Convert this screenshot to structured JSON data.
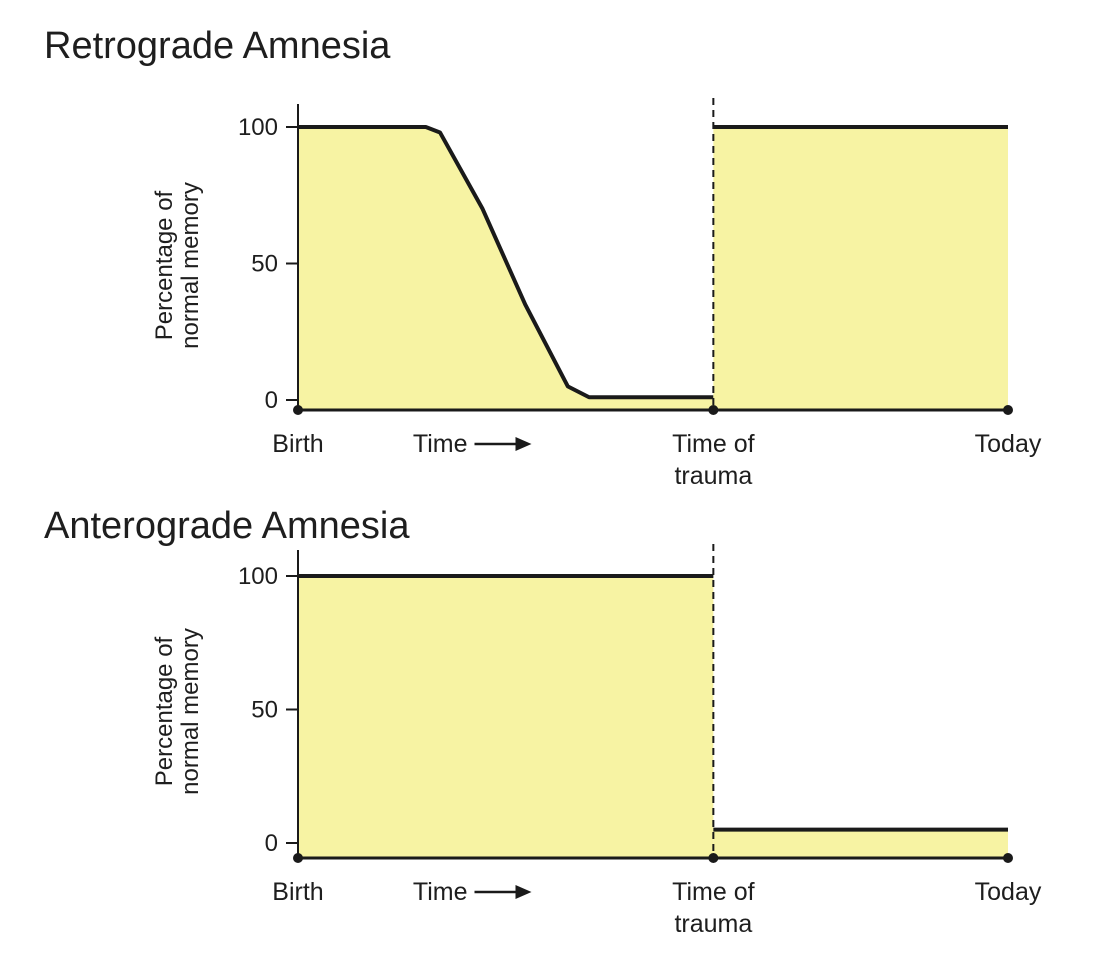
{
  "chart_data": [
    {
      "type": "area",
      "title": "Retrograde Amnesia",
      "ylabel_lines": [
        "Percentage of",
        "normal memory"
      ],
      "ylim": [
        0,
        100
      ],
      "yticks": [
        "0",
        "50",
        "100"
      ],
      "x_ticks": [
        {
          "label_lines": [
            "Birth"
          ],
          "pos": 0
        },
        {
          "label_lines": [
            "Time"
          ],
          "pos": 0.25,
          "arrow": true
        },
        {
          "label_lines": [
            "Time of",
            "trauma"
          ],
          "pos": 0.585
        },
        {
          "label_lines": [
            "Today"
          ],
          "pos": 1
        }
      ],
      "series": [
        {
          "x": [
            0,
            0.18,
            0.2,
            0.26,
            0.32,
            0.38,
            0.41,
            0.585
          ],
          "y": [
            100,
            100,
            98,
            70,
            35,
            5,
            1,
            1
          ]
        },
        {
          "x": [
            0.585,
            1
          ],
          "y": [
            100,
            100
          ]
        }
      ],
      "event_marker": {
        "label": "Time of trauma",
        "x": 0.585
      },
      "grid": false,
      "fill_color": "#f7f3a3",
      "line_color": "#1a1a1a"
    },
    {
      "type": "area",
      "title": "Anterograde Amnesia",
      "ylabel_lines": [
        "Percentage of",
        "normal memory"
      ],
      "ylim": [
        0,
        100
      ],
      "yticks": [
        "0",
        "50",
        "100"
      ],
      "x_ticks": [
        {
          "label_lines": [
            "Birth"
          ],
          "pos": 0
        },
        {
          "label_lines": [
            "Time"
          ],
          "pos": 0.25,
          "arrow": true
        },
        {
          "label_lines": [
            "Time of",
            "trauma"
          ],
          "pos": 0.585
        },
        {
          "label_lines": [
            "Today"
          ],
          "pos": 1
        }
      ],
      "series": [
        {
          "x": [
            0,
            0.585
          ],
          "y": [
            100,
            100
          ]
        },
        {
          "x": [
            0.585,
            1
          ],
          "y": [
            5,
            5
          ]
        }
      ],
      "event_marker": {
        "label": "Time of trauma",
        "x": 0.585
      },
      "grid": false,
      "fill_color": "#f7f3a3",
      "line_color": "#1a1a1a"
    }
  ]
}
